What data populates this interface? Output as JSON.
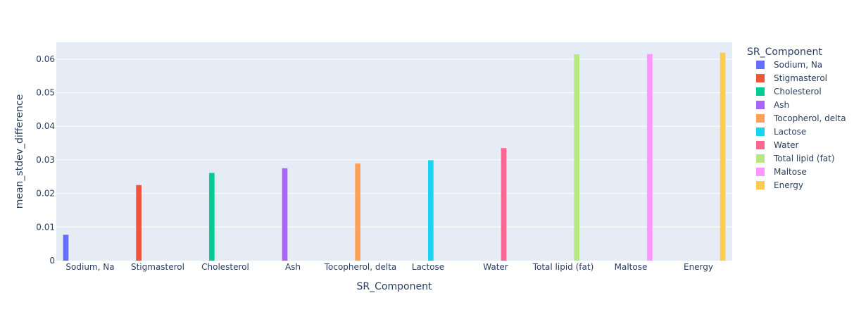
{
  "chart_data": {
    "type": "bar",
    "categories": [
      "Sodium, Na",
      "Stigmasterol",
      "Cholesterol",
      "Ash",
      "Tocopherol, delta",
      "Lactose",
      "Water",
      "Total lipid (fat)",
      "Maltose",
      "Energy"
    ],
    "series": [
      {
        "name": "Sodium, Na",
        "category": "Sodium, Na",
        "value": 0.0077,
        "color": "#636efa"
      },
      {
        "name": "Stigmasterol",
        "category": "Stigmasterol",
        "value": 0.0225,
        "color": "#EF553B"
      },
      {
        "name": "Cholesterol",
        "category": "Cholesterol",
        "value": 0.0261,
        "color": "#00cc96"
      },
      {
        "name": "Ash",
        "category": "Ash",
        "value": 0.0275,
        "color": "#ab63fa"
      },
      {
        "name": "Tocopherol, delta",
        "category": "Tocopherol, delta",
        "value": 0.0289,
        "color": "#FFA15A"
      },
      {
        "name": "Lactose",
        "category": "Lactose",
        "value": 0.0299,
        "color": "#19d3f3"
      },
      {
        "name": "Water",
        "category": "Water",
        "value": 0.0335,
        "color": "#FF6692"
      },
      {
        "name": "Total lipid (fat)",
        "category": "Total lipid (fat)",
        "value": 0.0614,
        "color": "#B6E880"
      },
      {
        "name": "Maltose",
        "category": "Maltose",
        "value": 0.0615,
        "color": "#FF97FF"
      },
      {
        "name": "Energy",
        "category": "Energy",
        "value": 0.0619,
        "color": "#FECB52"
      }
    ],
    "xlabel": "SR_Component",
    "ylabel": "mean_stdev_difference",
    "ylim": [
      0,
      0.065
    ],
    "yticks": [
      0,
      0.01,
      0.02,
      0.03,
      0.04,
      0.05,
      0.06
    ],
    "ytick_labels": [
      "0",
      "0.01",
      "0.02",
      "0.03",
      "0.04",
      "0.05",
      "0.06"
    ],
    "grid": true,
    "plot_background": "#E5ECF6",
    "legend": {
      "title": "SR_Component",
      "placement": "right"
    }
  }
}
